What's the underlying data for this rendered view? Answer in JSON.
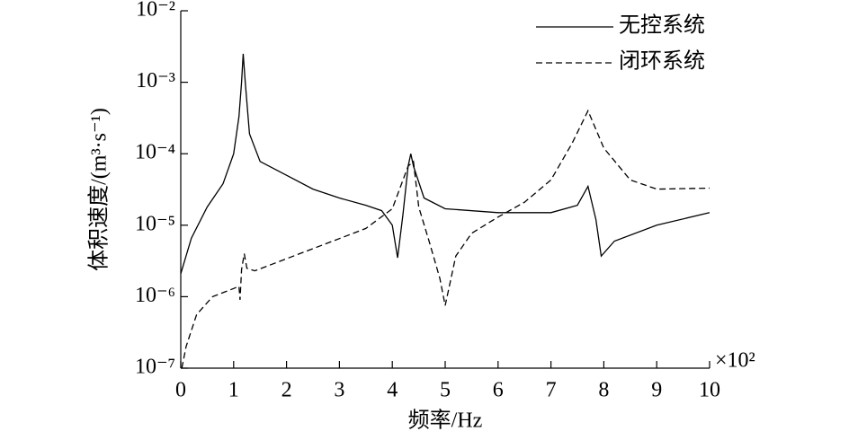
{
  "chart_data": {
    "type": "line",
    "xlabel": "频率/Hz",
    "ylabel": "体积速度/(m³·s⁻¹)",
    "x_multiplier": "×10²",
    "xlim": [
      0,
      10
    ],
    "xticks": [
      0,
      1,
      2,
      3,
      4,
      5,
      6,
      7,
      8,
      9,
      10
    ],
    "ylim": [
      1e-07,
      0.01
    ],
    "yscale": "log",
    "yticks": [
      {
        "value": 1e-07,
        "label": "10⁻⁷"
      },
      {
        "value": 1e-06,
        "label": "10⁻⁶"
      },
      {
        "value": 1e-05,
        "label": "10⁻⁵"
      },
      {
        "value": 0.0001,
        "label": "10⁻⁴"
      },
      {
        "value": 0.001,
        "label": "10⁻³"
      },
      {
        "value": 0.01,
        "label": "10⁻²"
      }
    ],
    "grid": false,
    "legend": "upper right",
    "series": [
      {
        "name": "无控系统",
        "color": "#000000",
        "linestyle": "solid",
        "x": [
          0,
          0.2,
          0.5,
          0.8,
          1.0,
          1.1,
          1.15,
          1.18,
          1.22,
          1.3,
          1.5,
          2,
          2.5,
          3,
          3.5,
          3.8,
          4.0,
          4.1,
          4.2,
          4.3,
          4.35,
          4.4,
          4.6,
          5,
          6,
          7,
          7.5,
          7.7,
          7.85,
          7.95,
          8.2,
          9,
          10
        ],
        "values": [
          2.1e-06,
          6.6e-06,
          1.8e-05,
          3.8e-05,
          0.0001,
          0.00033,
          0.001,
          0.0025,
          0.001,
          0.00019,
          7.8e-05,
          5e-05,
          3.2e-05,
          2.4e-05,
          1.9e-05,
          1.6e-05,
          1e-05,
          3.5e-06,
          1.4e-05,
          6.7e-05,
          0.0001,
          6.7e-05,
          2.4e-05,
          1.7e-05,
          1.5e-05,
          1.5e-05,
          1.9e-05,
          3.5e-05,
          1.2e-05,
          3.7e-06,
          6e-06,
          1e-05,
          1.5e-05
        ]
      },
      {
        "name": "闭环系统",
        "color": "#000000",
        "linestyle": "dashed",
        "x": [
          0.02,
          0.1,
          0.3,
          0.6,
          1.0,
          1.1,
          1.12,
          1.15,
          1.2,
          1.25,
          1.4,
          2,
          3,
          3.5,
          4,
          4.3,
          4.4,
          4.5,
          4.7,
          4.9,
          5.0,
          5.2,
          5.5,
          6,
          6.5,
          7,
          7.4,
          7.7,
          8,
          8.5,
          9,
          10
        ],
        "values": [
          1e-07,
          2e-07,
          5.6e-07,
          1e-06,
          1.3e-06,
          1.4e-06,
          9e-07,
          2.4e-06,
          4e-06,
          2.5e-06,
          2.3e-06,
          3.4e-06,
          6.5e-06,
          9e-06,
          1.7e-05,
          6.7e-05,
          7.8e-05,
          1.8e-05,
          5.8e-06,
          1.8e-06,
          7.5e-07,
          3.7e-06,
          7.7e-06,
          1.3e-05,
          2.1e-05,
          4.3e-05,
          0.00014,
          0.0004,
          0.00012,
          4.3e-05,
          3.2e-05,
          3.3e-05
        ]
      }
    ]
  }
}
